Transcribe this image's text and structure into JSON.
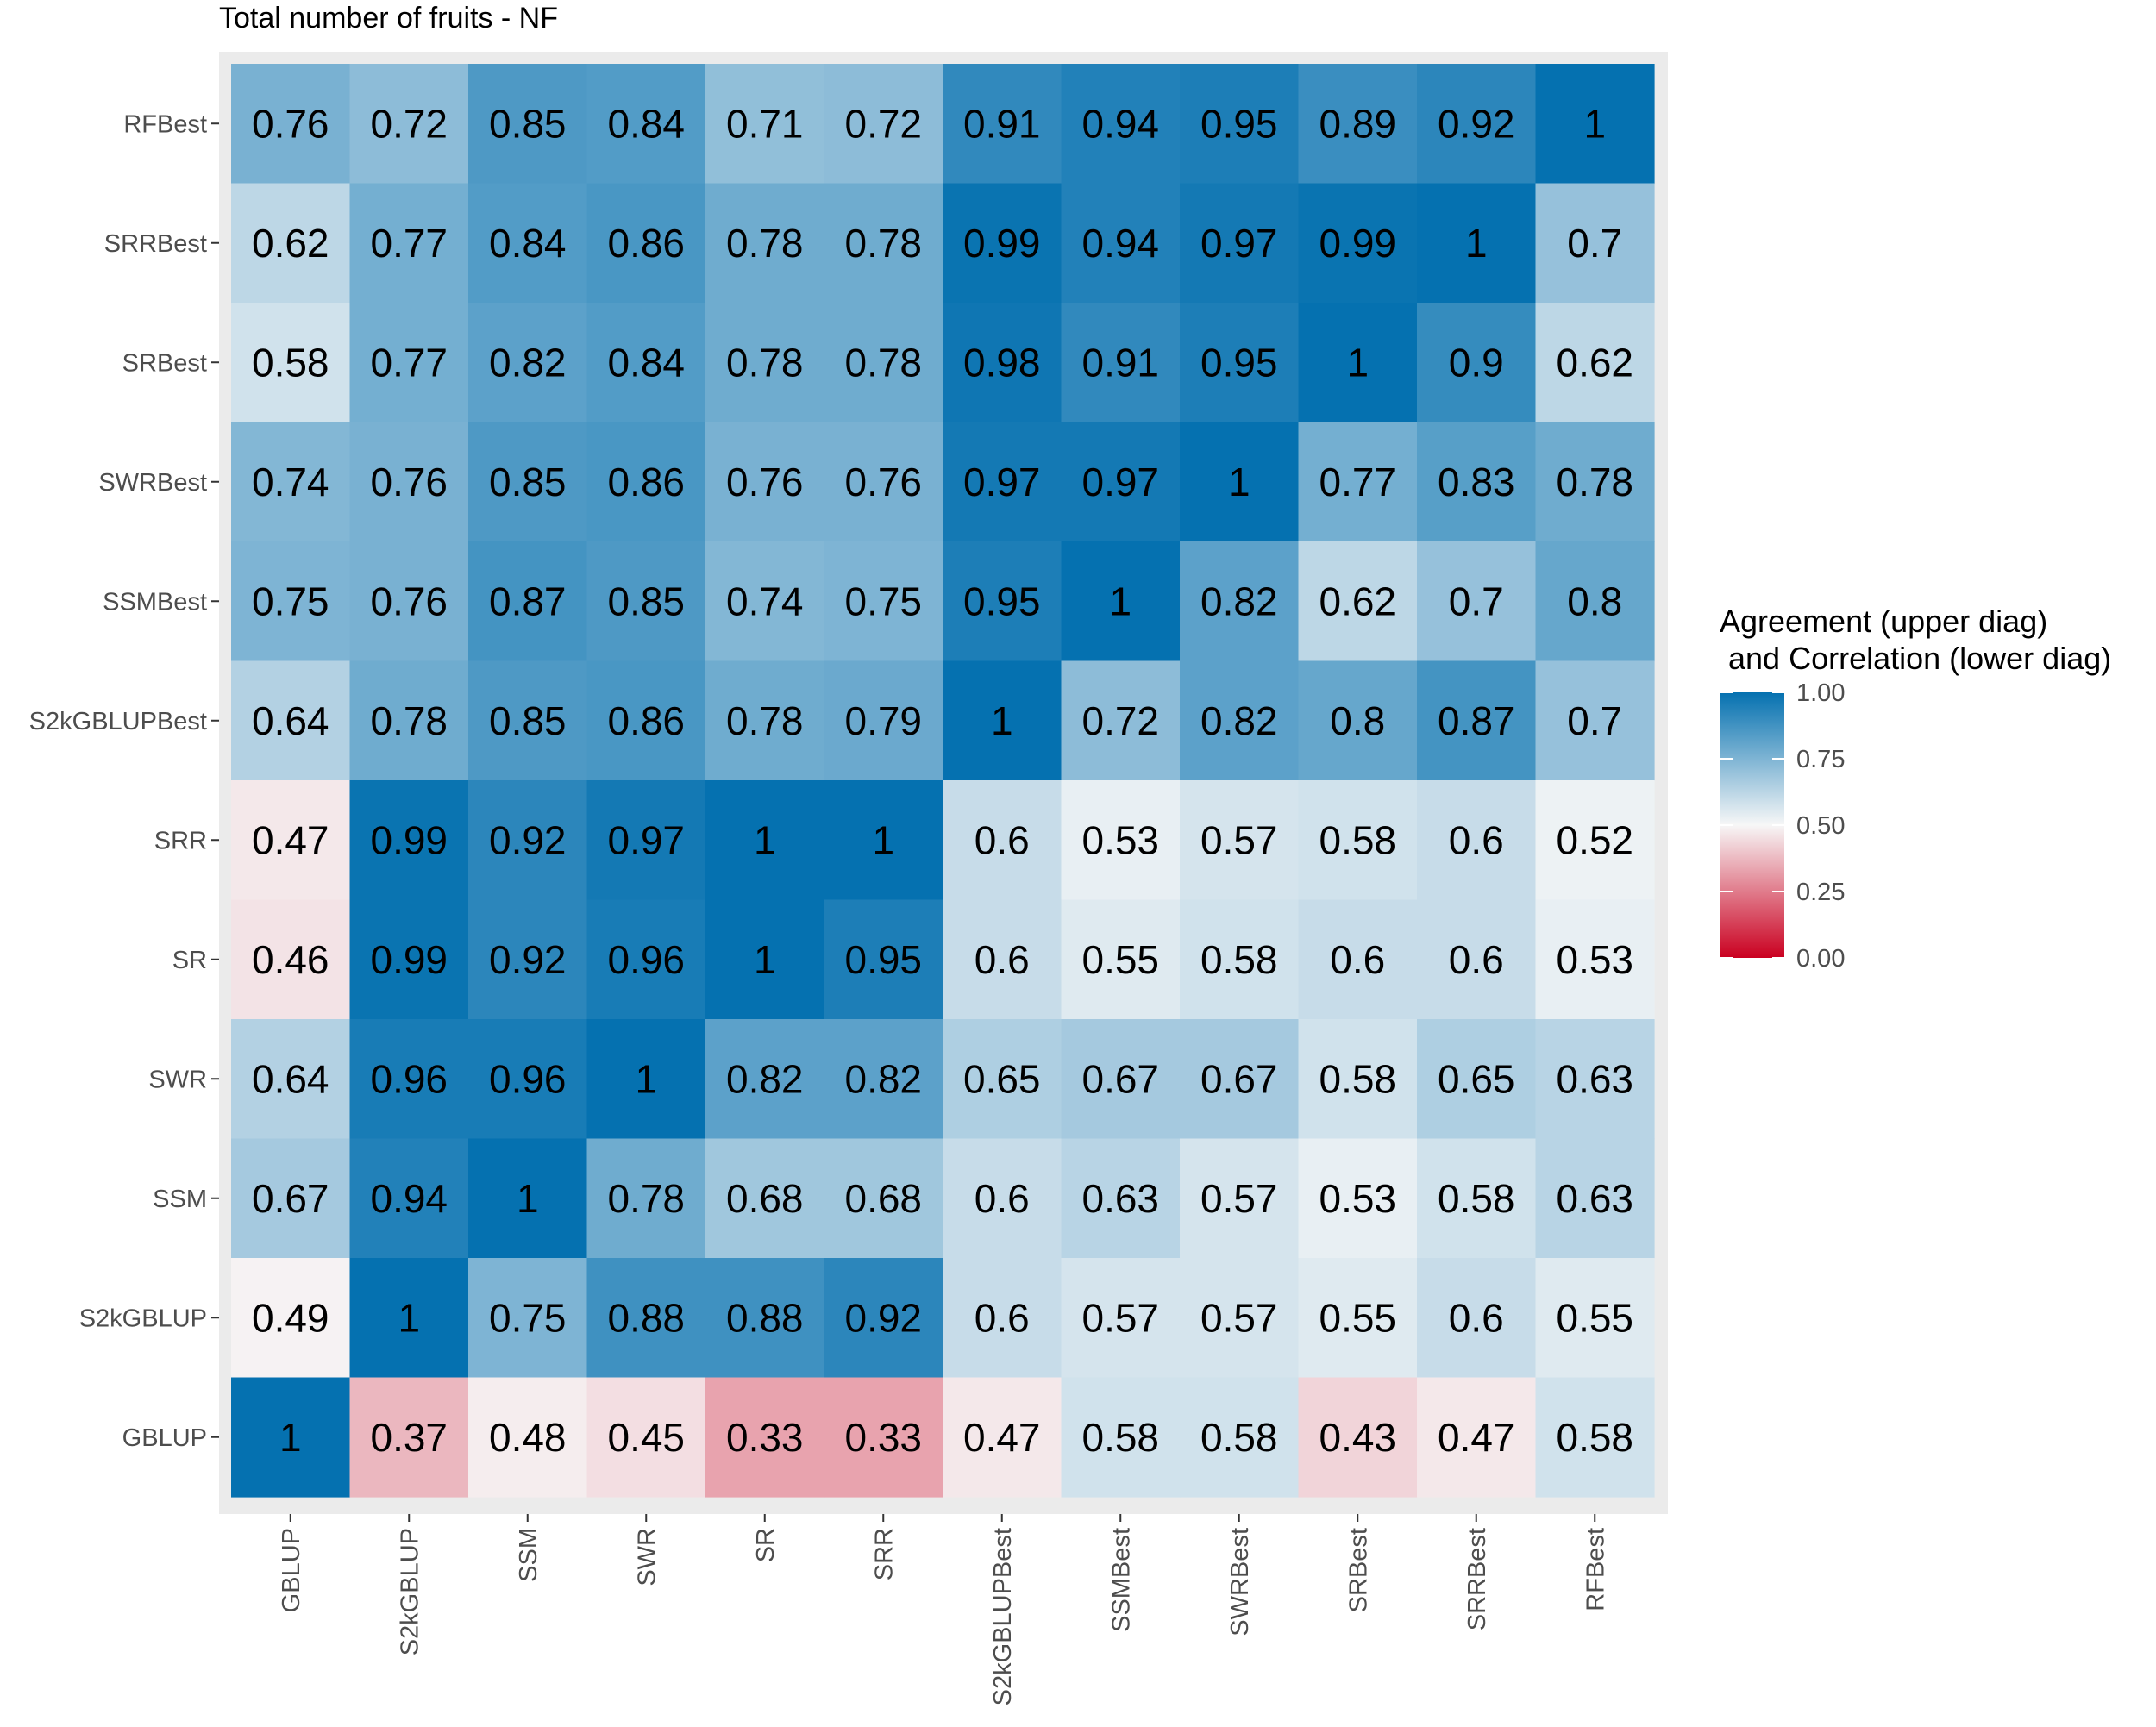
{
  "chart_data": {
    "type": "heatmap",
    "title": "Total number of fruits - NF",
    "x_categories": [
      "GBLUP",
      "S2kGBLUP",
      "SSM",
      "SWR",
      "SR",
      "SRR",
      "S2kGBLUPBest",
      "SSMBest",
      "SWRBest",
      "SRBest",
      "SRRBest",
      "RFBest"
    ],
    "y_categories_top_to_bottom": [
      "RFBest",
      "SRRBest",
      "SRBest",
      "SWRBest",
      "SSMBest",
      "S2kGBLUPBest",
      "SRR",
      "SR",
      "SWR",
      "SSM",
      "S2kGBLUP",
      "GBLUP"
    ],
    "values_text": [
      [
        "0.76",
        "0.72",
        "0.85",
        "0.84",
        "0.71",
        "0.72",
        "0.91",
        "0.94",
        "0.95",
        "0.89",
        "0.92",
        "1"
      ],
      [
        "0.62",
        "0.77",
        "0.84",
        "0.86",
        "0.78",
        "0.78",
        "0.99",
        "0.94",
        "0.97",
        "0.99",
        "1",
        "0.7"
      ],
      [
        "0.58",
        "0.77",
        "0.82",
        "0.84",
        "0.78",
        "0.78",
        "0.98",
        "0.91",
        "0.95",
        "1",
        "0.9",
        "0.62"
      ],
      [
        "0.74",
        "0.76",
        "0.85",
        "0.86",
        "0.76",
        "0.76",
        "0.97",
        "0.97",
        "1",
        "0.77",
        "0.83",
        "0.78"
      ],
      [
        "0.75",
        "0.76",
        "0.87",
        "0.85",
        "0.74",
        "0.75",
        "0.95",
        "1",
        "0.82",
        "0.62",
        "0.7",
        "0.8"
      ],
      [
        "0.64",
        "0.78",
        "0.85",
        "0.86",
        "0.78",
        "0.79",
        "1",
        "0.72",
        "0.82",
        "0.8",
        "0.87",
        "0.7"
      ],
      [
        "0.47",
        "0.99",
        "0.92",
        "0.97",
        "1",
        "1",
        "0.6",
        "0.53",
        "0.57",
        "0.58",
        "0.6",
        "0.52"
      ],
      [
        "0.46",
        "0.99",
        "0.92",
        "0.96",
        "1",
        "0.95",
        "0.6",
        "0.55",
        "0.58",
        "0.6",
        "0.6",
        "0.53"
      ],
      [
        "0.64",
        "0.96",
        "0.96",
        "1",
        "0.82",
        "0.82",
        "0.65",
        "0.67",
        "0.67",
        "0.58",
        "0.65",
        "0.63"
      ],
      [
        "0.67",
        "0.94",
        "1",
        "0.78",
        "0.68",
        "0.68",
        "0.6",
        "0.63",
        "0.57",
        "0.53",
        "0.58",
        "0.63"
      ],
      [
        "0.49",
        "1",
        "0.75",
        "0.88",
        "0.88",
        "0.92",
        "0.6",
        "0.57",
        "0.57",
        "0.55",
        "0.6",
        "0.55"
      ],
      [
        "1",
        "0.37",
        "0.48",
        "0.45",
        "0.33",
        "0.33",
        "0.47",
        "0.58",
        "0.58",
        "0.43",
        "0.47",
        "0.58"
      ]
    ],
    "legend": {
      "title_line1": "Agreement (upper  diag)",
      "title_line2": " and Correlation (lower diag)",
      "ticks": [
        "1.00",
        "0.75",
        "0.50",
        "0.25",
        "0.00"
      ],
      "tick_values": [
        1.0,
        0.75,
        0.5,
        0.25,
        0.0
      ],
      "range": [
        0,
        1
      ],
      "midpoint": 0.5,
      "placement": "right"
    },
    "colors": {
      "low": "#ca0020",
      "mid": "#f7f7f7",
      "high": "#0571b0",
      "panel_bg": "#ebebeb",
      "tick_color": "#333333"
    }
  }
}
